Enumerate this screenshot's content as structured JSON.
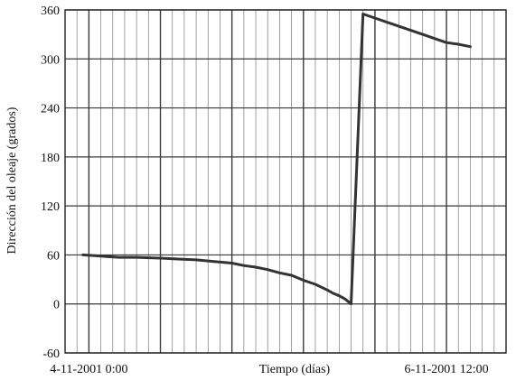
{
  "chart_data": {
    "type": "line",
    "title": "",
    "xlabel": "Tiempo (días)",
    "ylabel": "Dirección del oleaje (grados)",
    "x_tick_labels": [
      {
        "label": "4-11-2001 0:00",
        "at": 0
      },
      {
        "label": "6-11-2001 12:00",
        "at": 60
      }
    ],
    "xlim": [
      -4,
      70
    ],
    "ylim": [
      -60,
      360
    ],
    "yticks": [
      -60,
      0,
      60,
      120,
      180,
      240,
      300,
      360
    ],
    "grid": true,
    "series": [
      {
        "x": [
          -1,
          1,
          3,
          5,
          8,
          12,
          15,
          18,
          21,
          24,
          26,
          28,
          30,
          32,
          34,
          36,
          38,
          40,
          41,
          42,
          43,
          44,
          46,
          48,
          50,
          52,
          54,
          56,
          58,
          60,
          62,
          64
        ],
        "y": [
          60,
          59,
          58,
          57,
          57,
          56,
          55,
          54,
          52,
          50,
          47,
          45,
          42,
          38,
          35,
          29,
          24,
          17,
          13,
          10,
          6,
          0,
          355,
          350,
          345,
          340,
          335,
          330,
          325,
          320,
          318,
          315
        ],
        "color": "#333333"
      }
    ]
  }
}
